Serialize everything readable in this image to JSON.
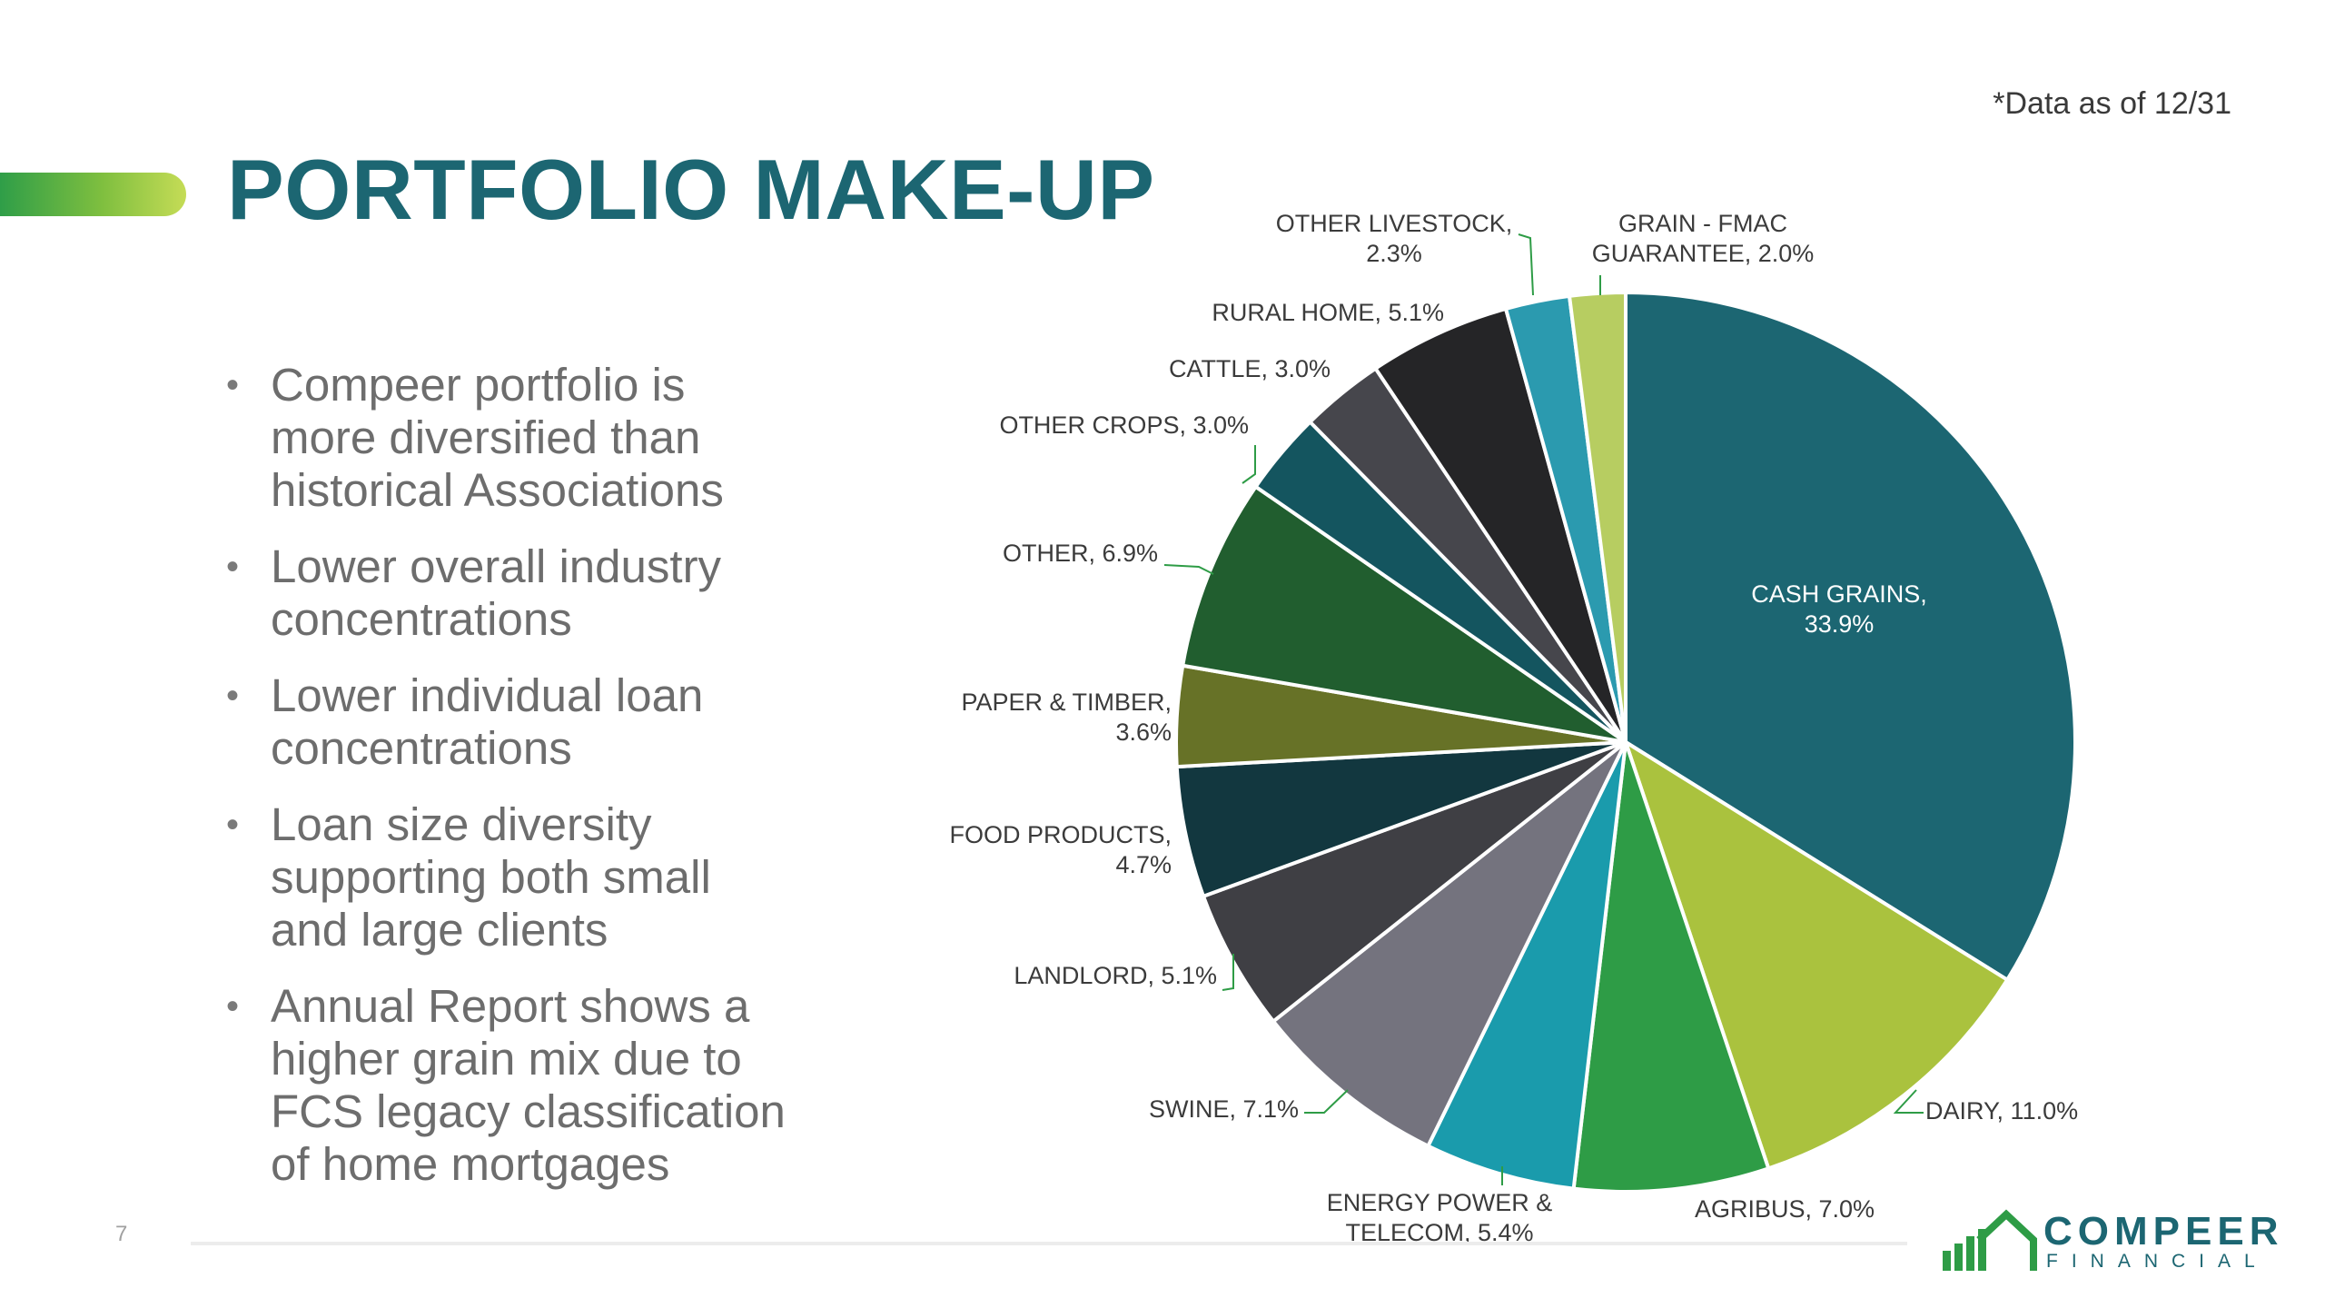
{
  "slide": {
    "title": "PORTFOLIO MAKE-UP",
    "data_note": "*Data as of 12/31",
    "page_number": "7",
    "bullets": [
      [
        "Compeer portfolio is",
        "more diversified than",
        "historical Associations"
      ],
      [
        "Lower overall industry",
        "concentrations"
      ],
      [
        "Lower individual loan",
        "concentrations"
      ],
      [
        "Loan size diversity",
        "supporting both small",
        "and large clients"
      ],
      [
        "Annual Report shows a",
        "higher grain mix due to",
        "FCS legacy classification",
        "of home mortgages"
      ]
    ],
    "logo": {
      "name": "COMPEER",
      "sub": "FINANCIAL",
      "icon": "house-bars-logo-icon"
    }
  },
  "chart_data": {
    "type": "pie",
    "start": "12 o'clock, clockwise",
    "slices": [
      {
        "label": "CASH GRAINS,",
        "value_label": "33.9%",
        "value": 33.9,
        "color": "#1c6672"
      },
      {
        "label": "DAIRY,",
        "value_label": "11.0%",
        "value": 11.0,
        "color": "#aac23e"
      },
      {
        "label": "AGRIBUS,",
        "value_label": "7.0%",
        "value": 7.0,
        "color": "#2e9c46"
      },
      {
        "label": "ENERGY POWER &",
        "value_label": "TELECOM, 5.4%",
        "value": 5.4,
        "color": "#1a9bac"
      },
      {
        "label": "SWINE,",
        "value_label": "7.1%",
        "value": 7.1,
        "color": "#74737e"
      },
      {
        "label": "LANDLORD,",
        "value_label": "5.1%",
        "value": 5.1,
        "color": "#3f3f44"
      },
      {
        "label": "FOOD PRODUCTS,",
        "value_label": "4.7%",
        "value": 4.7,
        "color": "#12373f"
      },
      {
        "label": "PAPER & TIMBER,",
        "value_label": "3.6%",
        "value": 3.6,
        "color": "#677227"
      },
      {
        "label": "OTHER,",
        "value_label": "6.9%",
        "value": 6.9,
        "color": "#215e2f"
      },
      {
        "label": "OTHER CROPS,",
        "value_label": "3.0%",
        "value": 3.0,
        "color": "#14555f"
      },
      {
        "label": "CATTLE,",
        "value_label": "3.0%",
        "value": 3.0,
        "color": "#46464c"
      },
      {
        "label": "RURAL HOME,",
        "value_label": "5.1%",
        "value": 5.1,
        "color": "#252527"
      },
      {
        "label": "OTHER LIVESTOCK,",
        "value_label": "2.3%",
        "value": 2.3,
        "color": "#2b9aaf"
      },
      {
        "label": "GRAIN - FMAC",
        "value_label": "GUARANTEE, 2.0%",
        "value": 2.0,
        "color": "#b7cd61"
      }
    ]
  }
}
